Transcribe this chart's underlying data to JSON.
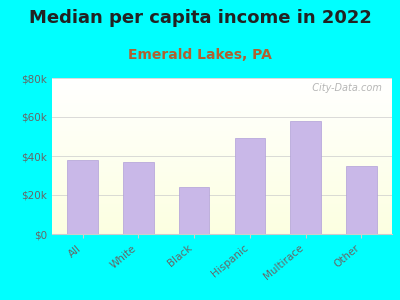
{
  "title": "Median per capita income in 2022",
  "subtitle": "Emerald Lakes, PA",
  "categories": [
    "All",
    "White",
    "Black",
    "Hispanic",
    "Multirace",
    "Other"
  ],
  "values": [
    38000,
    37000,
    24000,
    49000,
    58000,
    35000
  ],
  "bar_color": "#c9b8e8",
  "bar_edge_color": "#b0a0d8",
  "bg_color": "#00ffff",
  "ylim": [
    0,
    80000
  ],
  "yticks": [
    0,
    20000,
    40000,
    60000,
    80000
  ],
  "ytick_labels": [
    "$0",
    "$20k",
    "$40k",
    "$60k",
    "$80k"
  ],
  "title_fontsize": 13,
  "subtitle_fontsize": 10,
  "tick_fontsize": 7.5,
  "watermark": "  City-Data.com",
  "title_color": "#222222",
  "subtitle_color": "#b06030",
  "tick_color": "#666666",
  "grid_color": "#cccccc"
}
